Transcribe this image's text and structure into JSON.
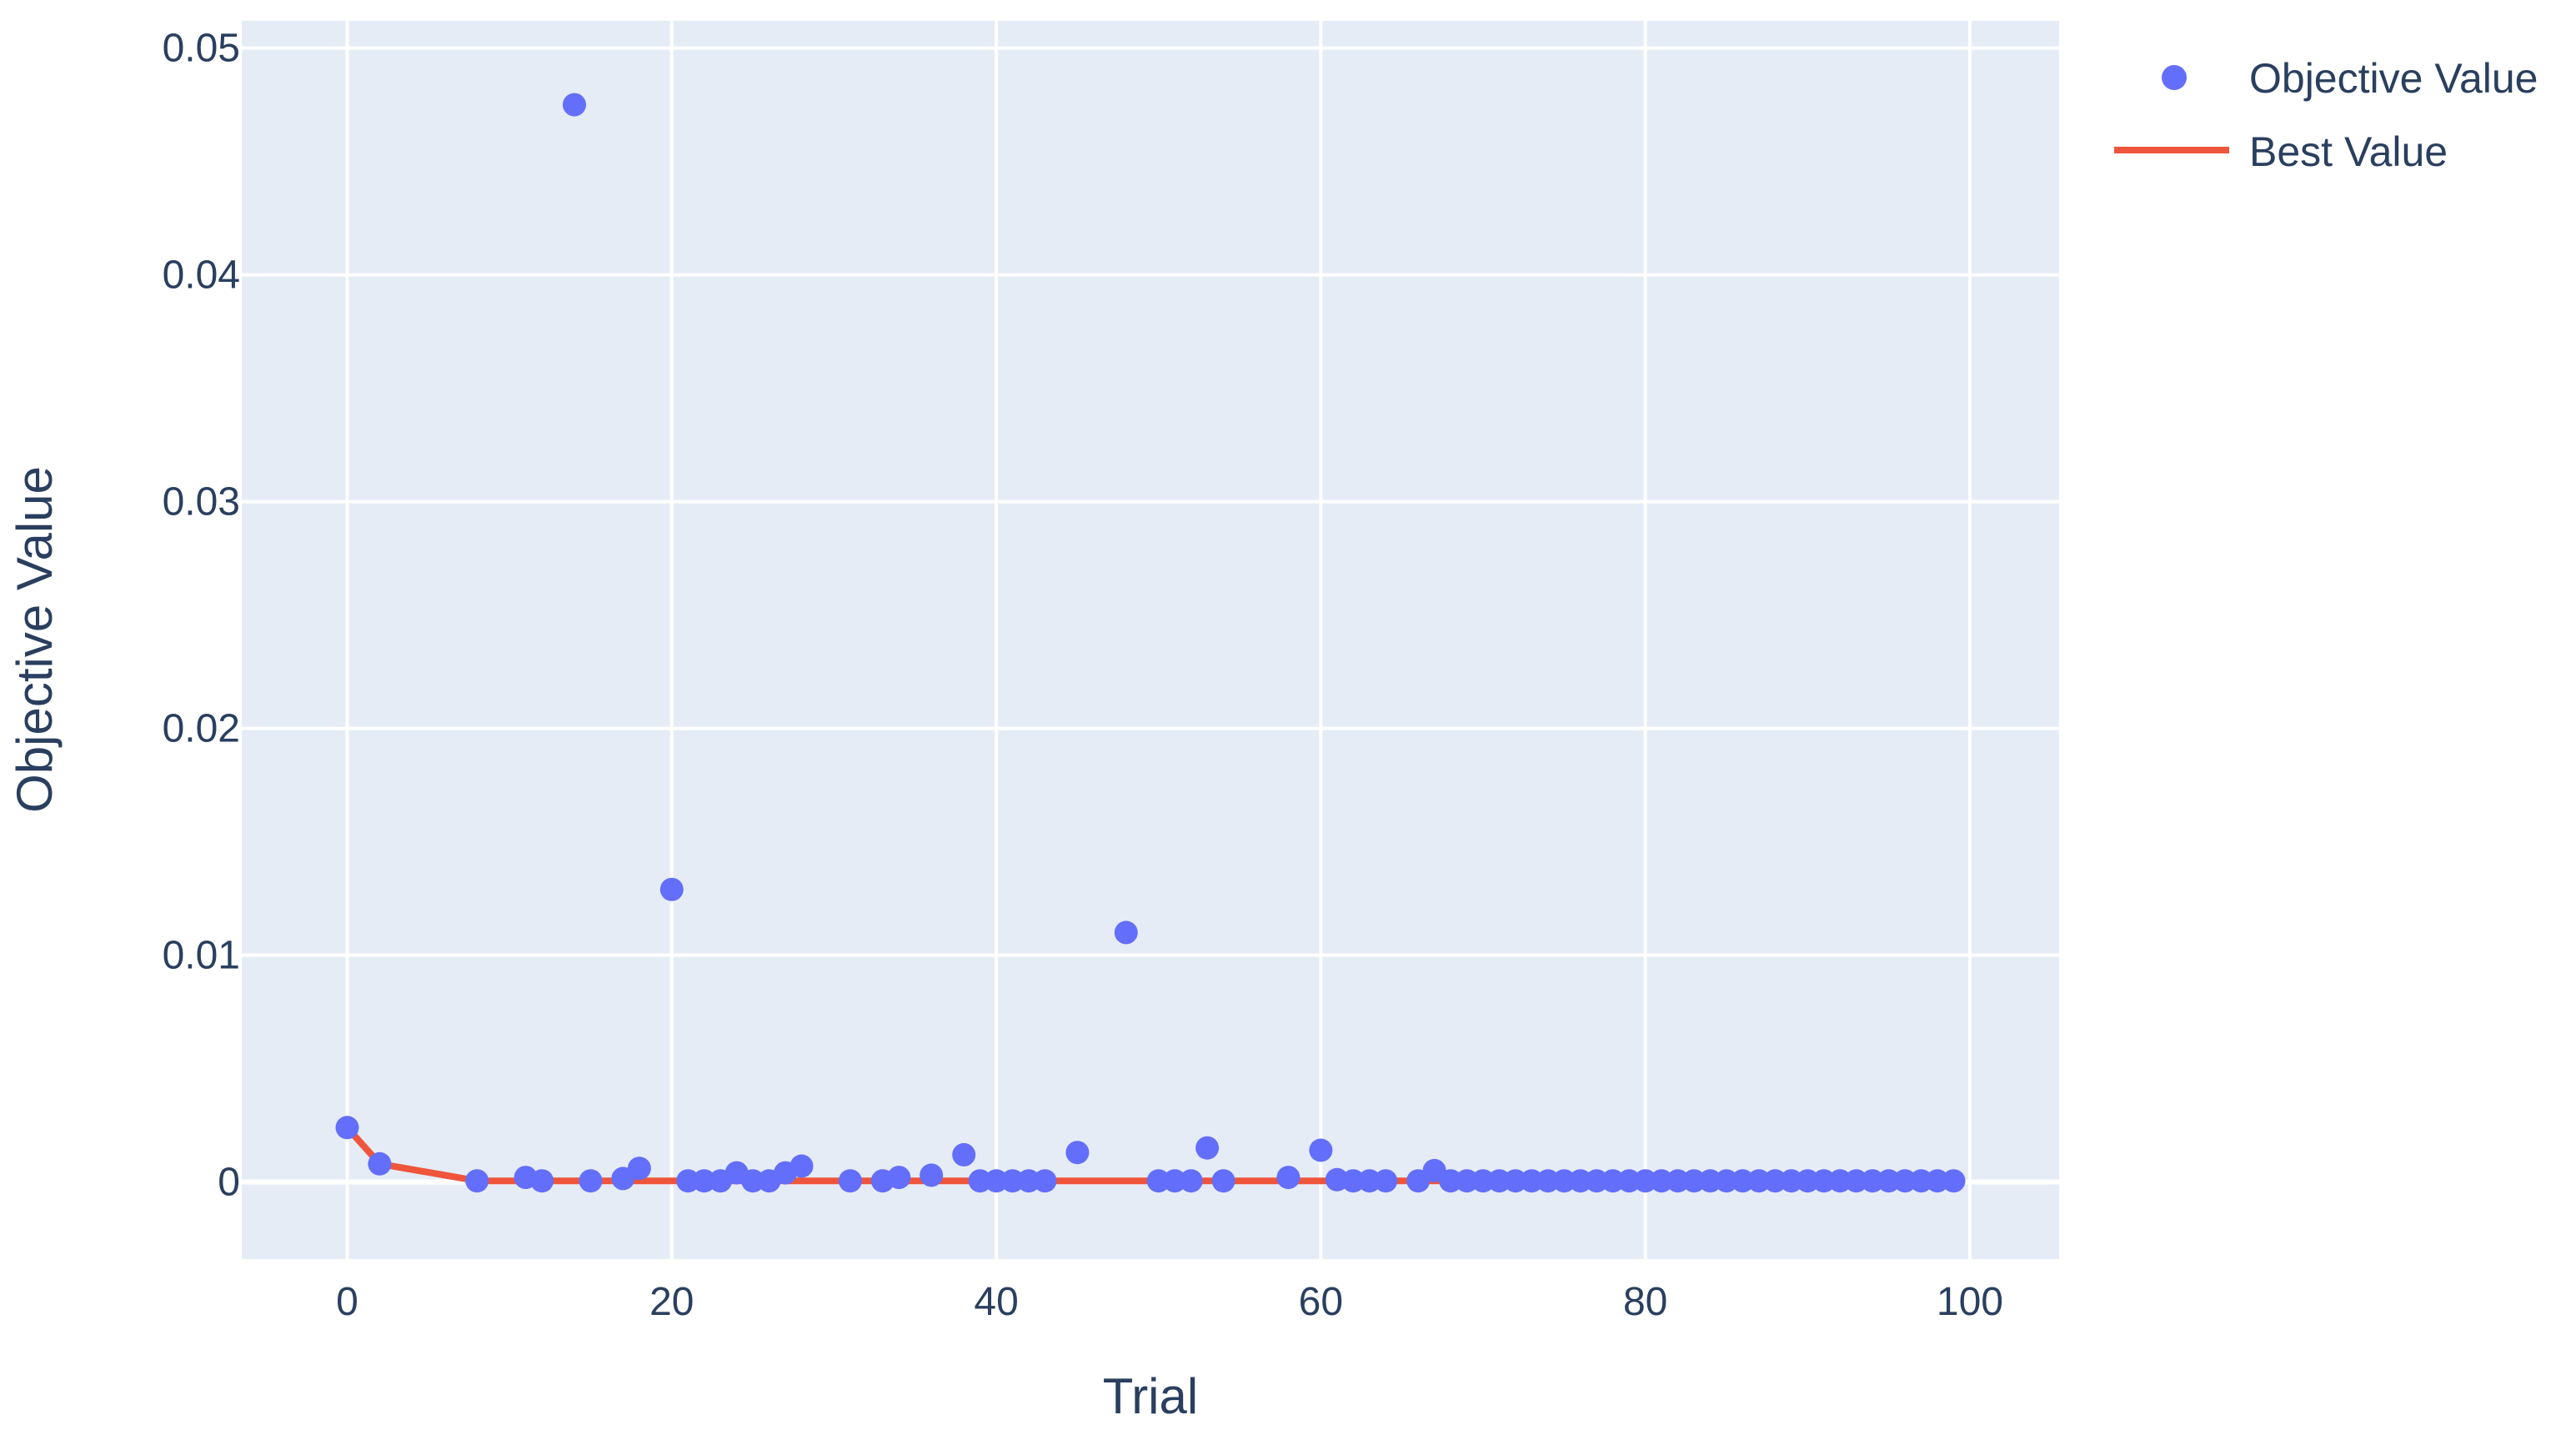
{
  "chart_data": {
    "type": "scatter",
    "xlabel": "Trial",
    "ylabel": "Objective Value",
    "xlim": [
      -6.5,
      105.5
    ],
    "ylim": [
      -0.0034,
      0.0512
    ],
    "x_ticks": [
      0,
      20,
      40,
      60,
      80,
      100
    ],
    "x_tick_labels": [
      "0",
      "20",
      "40",
      "60",
      "80",
      "100"
    ],
    "y_ticks": [
      0,
      0.01,
      0.02,
      0.03,
      0.04,
      0.05
    ],
    "y_tick_labels": [
      "0",
      "0.01",
      "0.02",
      "0.03",
      "0.04",
      "0.05"
    ],
    "grid": true,
    "legend_position": "top-right",
    "colors": {
      "plot_background": "#e5ecf6",
      "grid": "#ffffff",
      "text": "#2a3f5f",
      "objective": "#636efa",
      "best": "#ef553b"
    },
    "series": [
      {
        "name": "Objective Value",
        "type": "scatter",
        "points": [
          [
            0,
            0.0024
          ],
          [
            2,
            0.0008
          ],
          [
            8,
            5e-05
          ],
          [
            11,
            0.0002
          ],
          [
            12,
            5e-05
          ],
          [
            14,
            0.0475
          ],
          [
            15,
            5e-05
          ],
          [
            17,
            0.00015
          ],
          [
            18,
            0.0006
          ],
          [
            20,
            0.0129
          ],
          [
            21,
            5e-05
          ],
          [
            22,
            5e-05
          ],
          [
            23,
            5e-05
          ],
          [
            24,
            0.0004
          ],
          [
            25,
            5e-05
          ],
          [
            26,
            5e-05
          ],
          [
            27,
            0.0004
          ],
          [
            28,
            0.0007
          ],
          [
            31,
            5e-05
          ],
          [
            33,
            5e-05
          ],
          [
            34,
            0.0002
          ],
          [
            36,
            0.0003
          ],
          [
            38,
            0.0012
          ],
          [
            39,
            5e-05
          ],
          [
            40,
            5e-05
          ],
          [
            41,
            5e-05
          ],
          [
            42,
            5e-05
          ],
          [
            43,
            5e-05
          ],
          [
            45,
            0.0013
          ],
          [
            48,
            0.011
          ],
          [
            50,
            5e-05
          ],
          [
            51,
            5e-05
          ],
          [
            52,
            5e-05
          ],
          [
            53,
            0.0015
          ],
          [
            54,
            5e-05
          ],
          [
            58,
            0.0002
          ],
          [
            60,
            0.0014
          ],
          [
            61,
            0.0001
          ],
          [
            62,
            5e-05
          ],
          [
            63,
            5e-05
          ],
          [
            64,
            5e-05
          ],
          [
            66,
            5e-05
          ],
          [
            67,
            0.0005
          ],
          [
            68,
            5e-05
          ],
          [
            69,
            5e-05
          ],
          [
            70,
            5e-05
          ],
          [
            71,
            5e-05
          ],
          [
            72,
            5e-05
          ],
          [
            73,
            5e-05
          ],
          [
            74,
            5e-05
          ],
          [
            75,
            5e-05
          ],
          [
            76,
            5e-05
          ],
          [
            77,
            5e-05
          ],
          [
            78,
            5e-05
          ],
          [
            79,
            5e-05
          ],
          [
            80,
            5e-05
          ],
          [
            81,
            5e-05
          ],
          [
            82,
            5e-05
          ],
          [
            83,
            5e-05
          ],
          [
            84,
            5e-05
          ],
          [
            85,
            5e-05
          ],
          [
            86,
            5e-05
          ],
          [
            87,
            5e-05
          ],
          [
            88,
            5e-05
          ],
          [
            89,
            5e-05
          ],
          [
            90,
            5e-05
          ],
          [
            91,
            5e-05
          ],
          [
            92,
            5e-05
          ],
          [
            93,
            5e-05
          ],
          [
            94,
            5e-05
          ],
          [
            95,
            5e-05
          ],
          [
            96,
            5e-05
          ],
          [
            97,
            5e-05
          ],
          [
            98,
            5e-05
          ],
          [
            99,
            5e-05
          ]
        ]
      },
      {
        "name": "Best Value",
        "type": "line",
        "points": [
          [
            0,
            0.0024
          ],
          [
            2,
            0.0008
          ],
          [
            8,
            5e-05
          ],
          [
            99,
            5e-05
          ]
        ]
      }
    ]
  }
}
